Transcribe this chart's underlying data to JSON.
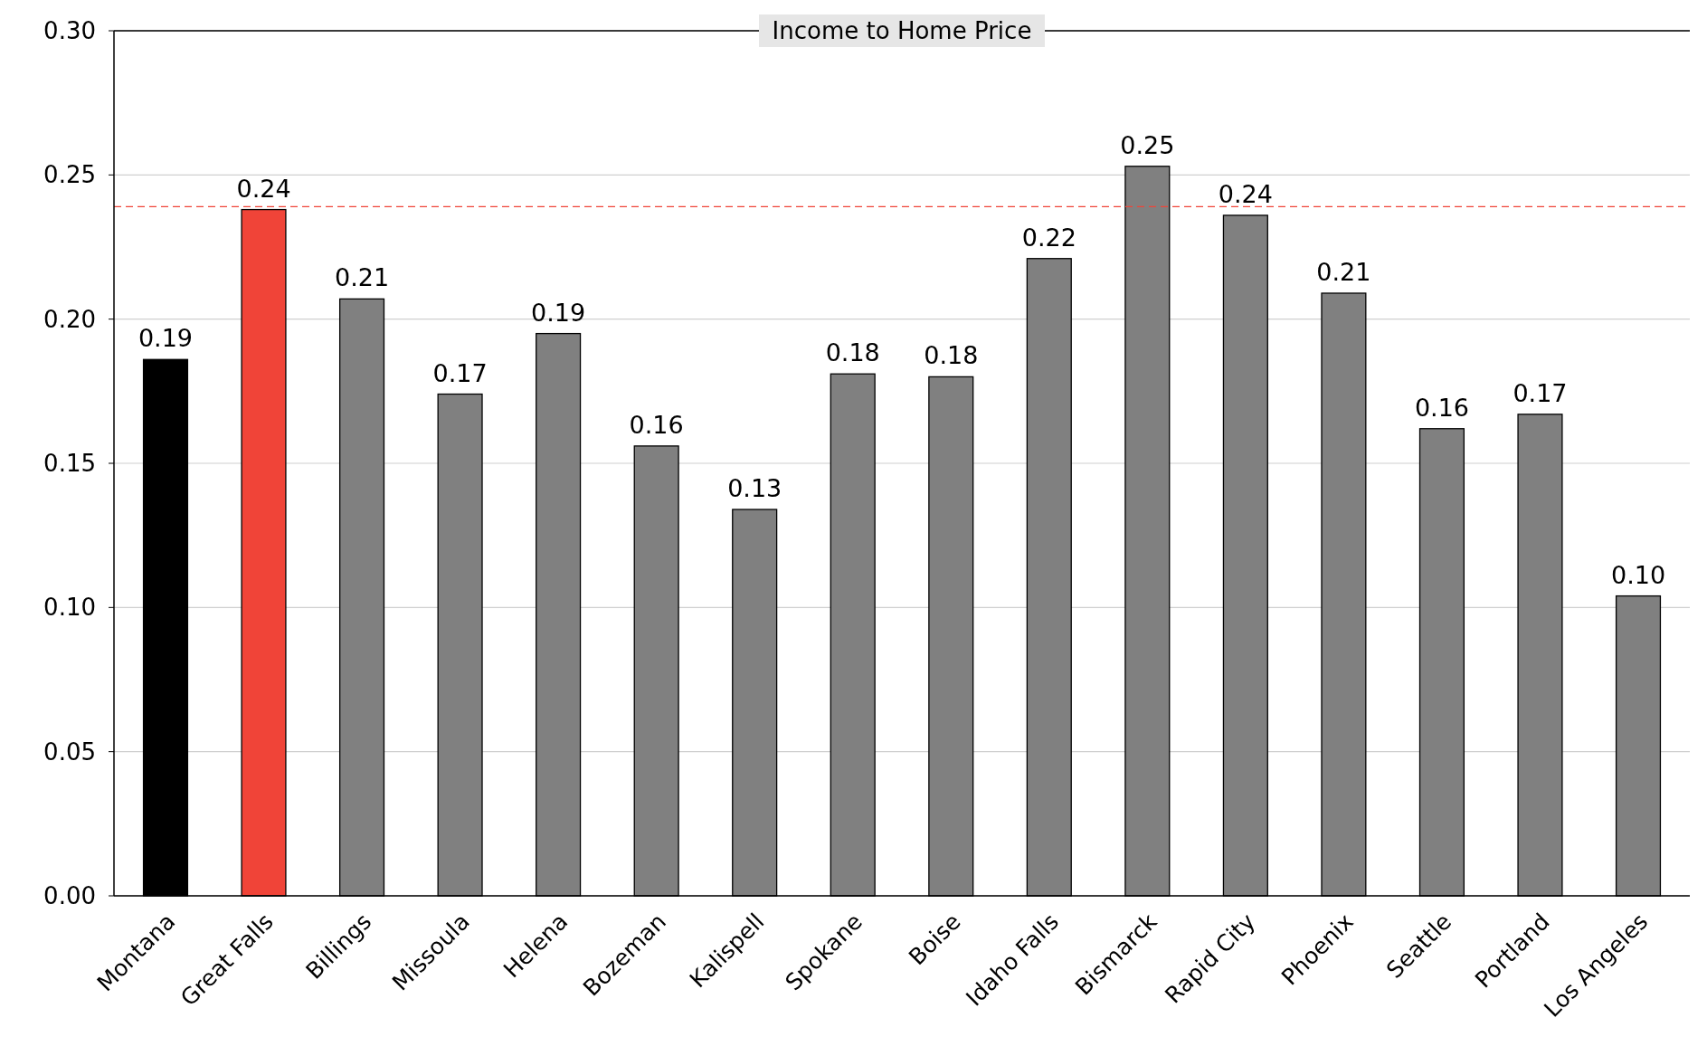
{
  "chart_data": {
    "type": "bar",
    "title": "Income to Home Price",
    "categories": [
      "Montana",
      "Great Falls",
      "Billings",
      "Missoula",
      "Helena",
      "Bozeman",
      "Kalispell",
      "Spokane",
      "Boise",
      "Idaho Falls",
      "Bismarck",
      "Rapid City",
      "Phoenix",
      "Seattle",
      "Portland",
      "Los Angeles"
    ],
    "values": [
      0.186,
      0.238,
      0.207,
      0.174,
      0.195,
      0.156,
      0.134,
      0.181,
      0.18,
      0.221,
      0.253,
      0.236,
      0.209,
      0.162,
      0.167,
      0.104
    ],
    "colors": [
      "#000000",
      "#f04438",
      "#808080",
      "#808080",
      "#808080",
      "#808080",
      "#808080",
      "#808080",
      "#808080",
      "#808080",
      "#808080",
      "#808080",
      "#808080",
      "#808080",
      "#808080",
      "#808080"
    ],
    "value_labels": [
      "0.19",
      "0.24",
      "0.21",
      "0.17",
      "0.19",
      "0.16",
      "0.13",
      "0.18",
      "0.18",
      "0.22",
      "0.25",
      "0.24",
      "0.21",
      "0.16",
      "0.17",
      "0.10"
    ],
    "ylim": [
      0,
      0.3
    ],
    "yticks": [
      {
        "value": 0,
        "label": "0.00"
      },
      {
        "value": 0.05,
        "label": "0.05"
      },
      {
        "value": 0.1,
        "label": "0.10"
      },
      {
        "value": 0.15,
        "label": "0.15"
      },
      {
        "value": 0.2,
        "label": "0.20"
      },
      {
        "value": 0.25,
        "label": "0.25"
      },
      {
        "value": 0.3,
        "label": "0.30"
      }
    ],
    "grid": "y",
    "ref_lines": [
      {
        "axis": "y",
        "value": 0.239,
        "color": "#f04438",
        "line_style": "dashed"
      }
    ]
  }
}
